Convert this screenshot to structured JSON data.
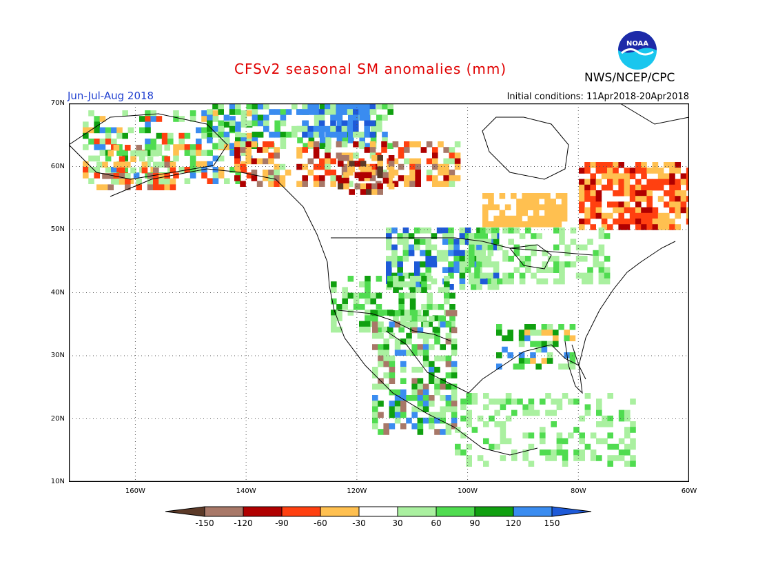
{
  "header": {
    "title": "CFSv2 seasonal SM anomalies (mm)",
    "agency": "NWS/NCEP/CPC",
    "period": "Jun-Jul-Aug 2018",
    "initial_conditions": "Initial conditions: 11Apr2018-20Apr2018",
    "logo_text": "NOAA"
  },
  "map": {
    "lon_range": [
      -172,
      -60
    ],
    "lat_range": [
      10,
      70
    ],
    "lat_labels": [
      "70N",
      "60N",
      "50N",
      "40N",
      "30N",
      "20N",
      "10N"
    ],
    "lat_values": [
      70,
      60,
      50,
      40,
      30,
      20,
      10
    ],
    "lon_labels": [
      "160W",
      "140W",
      "120W",
      "100W",
      "80W",
      "60W"
    ],
    "lon_values": [
      -160,
      -140,
      -120,
      -100,
      -80,
      -60
    ]
  },
  "legend": {
    "labels": [
      "-150",
      "-120",
      "-90",
      "-60",
      "-30",
      "30",
      "60",
      "90",
      "120",
      "150"
    ],
    "colors": [
      "#5c3a28",
      "#a87868",
      "#b00000",
      "#ff4010",
      "#ffc050",
      "#ffffff",
      "#aaf0a0",
      "#50dc50",
      "#10a010",
      "#3a8cf0",
      "#1e5ad8"
    ]
  }
}
